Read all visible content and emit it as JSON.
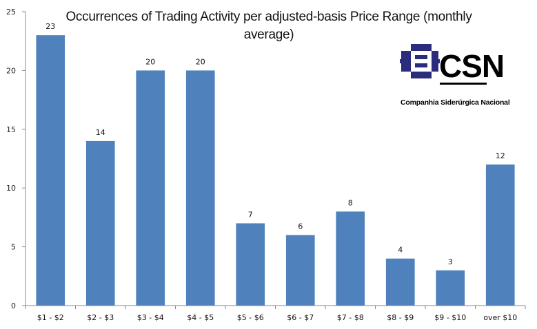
{
  "chart_data": {
    "type": "bar",
    "title": "Occurrences of Trading Activity per adjusted-basis Price Range (monthly average)",
    "title_lines": [
      "Occurrences of Trading Activity per adjusted-basis Price Range (monthly",
      "average)"
    ],
    "categories": [
      "$1 - $2",
      "$2 - $3",
      "$3 - $4",
      "$4 - $5",
      "$5 - $6",
      "$6 - $7",
      "$7 - $8",
      "$8 - $9",
      "$9 - $10",
      "over $10"
    ],
    "values": [
      23,
      14,
      20,
      20,
      7,
      6,
      8,
      4,
      3,
      12
    ],
    "ylim": [
      0,
      25
    ],
    "yticks": [
      0,
      5,
      10,
      15,
      20,
      25
    ],
    "xlabel": "",
    "ylabel": "",
    "grid": false,
    "legend": "none",
    "bar_color": "#4F81BD",
    "data_labels": true
  },
  "logo": {
    "wordmark": "CSN",
    "caption": "Companhia Siderúrgica Nacional",
    "color": "#2B2C7C"
  }
}
